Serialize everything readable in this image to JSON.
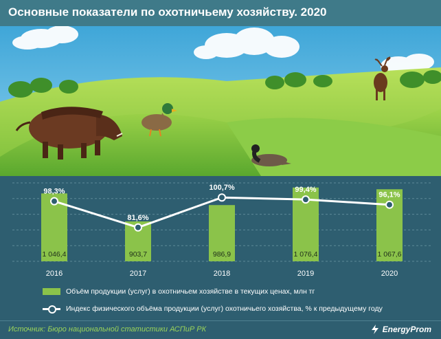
{
  "title": "Основные показатели по охотничьему хозяйству. 2020",
  "chart_data": {
    "type": "bar+line",
    "categories": [
      "2016",
      "2017",
      "2018",
      "2019",
      "2020"
    ],
    "series": [
      {
        "name": "Объём продукции (услуг) в охотничьем хозяйстве в текущих ценах, млн тг",
        "type": "bar",
        "values": [
          1046.4,
          903.7,
          986.9,
          1076.4,
          1067.6
        ],
        "labels": [
          "1 046,4",
          "903,7",
          "986,9",
          "1 076,4",
          "1 067,6"
        ],
        "ylim": [
          700,
          1100
        ]
      },
      {
        "name": "Индекс физического объёма продукции (услуг) охотничьего хозяйства, % к предыдущему году",
        "type": "line",
        "values": [
          98.3,
          81.6,
          100.7,
          99.4,
          96.1
        ],
        "labels": [
          "98,3%",
          "81,6%",
          "100,7%",
          "99,4%",
          "96,1%"
        ],
        "ylim": [
          60,
          110
        ]
      }
    ],
    "colors": {
      "bar": "#8bc34a",
      "line": "#ffffff"
    }
  },
  "legend": {
    "bar_label": "Объём продукции (услуг) в охотничьем хозяйстве в текущих ценах, млн тг",
    "line_label": "Индекс физического объёма продукции (услуг) охотничьего хозяйства, % к предыдущему году"
  },
  "footer": {
    "source": "Источник: Бюро национальной статистики АСПиР РК",
    "brand": "EnergyProm"
  }
}
